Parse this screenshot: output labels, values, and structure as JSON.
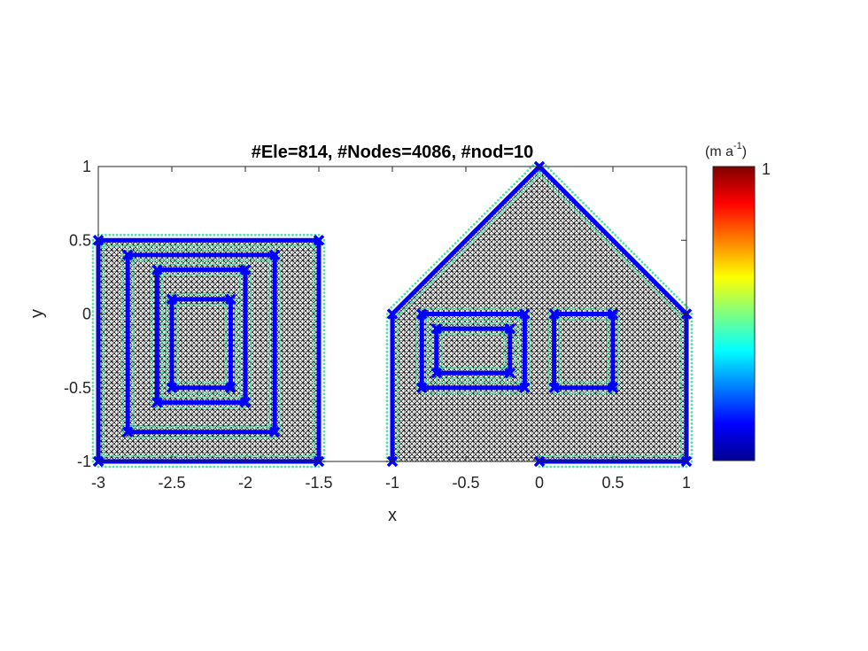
{
  "chart_data": {
    "type": "mesh",
    "title": "#Ele=814, #Nodes=4086, #nod=10",
    "xlabel": "x",
    "ylabel": "y",
    "xlim": [
      -3,
      1
    ],
    "ylim": [
      -1,
      1
    ],
    "xticks": [
      -3,
      -2.5,
      -2,
      -1.5,
      -1,
      -0.5,
      0,
      0.5,
      1
    ],
    "xtick_labels": [
      "-3",
      "-2.5",
      "-2",
      "-1.5",
      "-1",
      "-0.5",
      "0",
      "0.5",
      "1"
    ],
    "yticks": [
      -1,
      -0.5,
      0,
      0.5,
      1
    ],
    "ytick_labels": [
      "-1",
      "-0.5",
      "0",
      "0.5",
      "1"
    ],
    "grid": false,
    "mesh_color": "#000000",
    "boundary_color": "#0000ff",
    "boundary_node_color": "#55e0a8",
    "mesh_regions": [
      [
        [
          -3,
          0.5
        ],
        [
          -1.5,
          0.5
        ],
        [
          -1.5,
          -1
        ],
        [
          -3,
          -1
        ]
      ],
      [
        [
          -1,
          0
        ],
        [
          0,
          1
        ],
        [
          1,
          0
        ],
        [
          1,
          -1
        ],
        [
          -1,
          -1
        ]
      ]
    ],
    "boundaries": [
      {
        "name": "square-outer",
        "points": [
          [
            -3,
            0.5
          ],
          [
            -1.5,
            0.5
          ],
          [
            -1.5,
            -1
          ],
          [
            -3,
            -1
          ]
        ],
        "closed": true
      },
      {
        "name": "square-ring-2",
        "points": [
          [
            -2.8,
            0.4
          ],
          [
            -1.8,
            0.4
          ],
          [
            -1.8,
            -0.8
          ],
          [
            -2.8,
            -0.8
          ]
        ],
        "closed": true
      },
      {
        "name": "square-ring-3",
        "points": [
          [
            -2.6,
            0.3
          ],
          [
            -2.0,
            0.3
          ],
          [
            -2.0,
            -0.6
          ],
          [
            -2.6,
            -0.6
          ]
        ],
        "closed": true
      },
      {
        "name": "square-ring-4",
        "points": [
          [
            -2.5,
            0.1
          ],
          [
            -2.1,
            0.1
          ],
          [
            -2.1,
            -0.5
          ],
          [
            -2.5,
            -0.5
          ]
        ],
        "closed": true
      },
      {
        "name": "house-outline",
        "points": [
          [
            -1,
            -1
          ],
          [
            -1,
            0
          ],
          [
            0,
            1
          ],
          [
            1,
            0
          ],
          [
            1,
            -1
          ],
          [
            0,
            -1
          ]
        ],
        "closed": false
      },
      {
        "name": "house-window-left",
        "points": [
          [
            -0.8,
            0
          ],
          [
            -0.1,
            0
          ],
          [
            -0.1,
            -0.5
          ],
          [
            -0.8,
            -0.5
          ]
        ],
        "closed": true
      },
      {
        "name": "house-window-left-inner",
        "points": [
          [
            -0.7,
            -0.1
          ],
          [
            -0.2,
            -0.1
          ],
          [
            -0.2,
            -0.4
          ],
          [
            -0.7,
            -0.4
          ]
        ],
        "closed": true
      },
      {
        "name": "house-window-right",
        "points": [
          [
            0.1,
            0
          ],
          [
            0.5,
            0
          ],
          [
            0.5,
            -0.5
          ],
          [
            0.1,
            -0.5
          ]
        ],
        "closed": true
      }
    ],
    "colorbar": {
      "unit_prefix": "(m a",
      "unit_exp": "-1",
      "unit_suffix": ")",
      "max_label": "1",
      "colormap": [
        "#00008f",
        "#0000ff",
        "#0080ff",
        "#00ffff",
        "#80ff80",
        "#ffff00",
        "#ff8000",
        "#ff0000",
        "#800000"
      ]
    }
  }
}
